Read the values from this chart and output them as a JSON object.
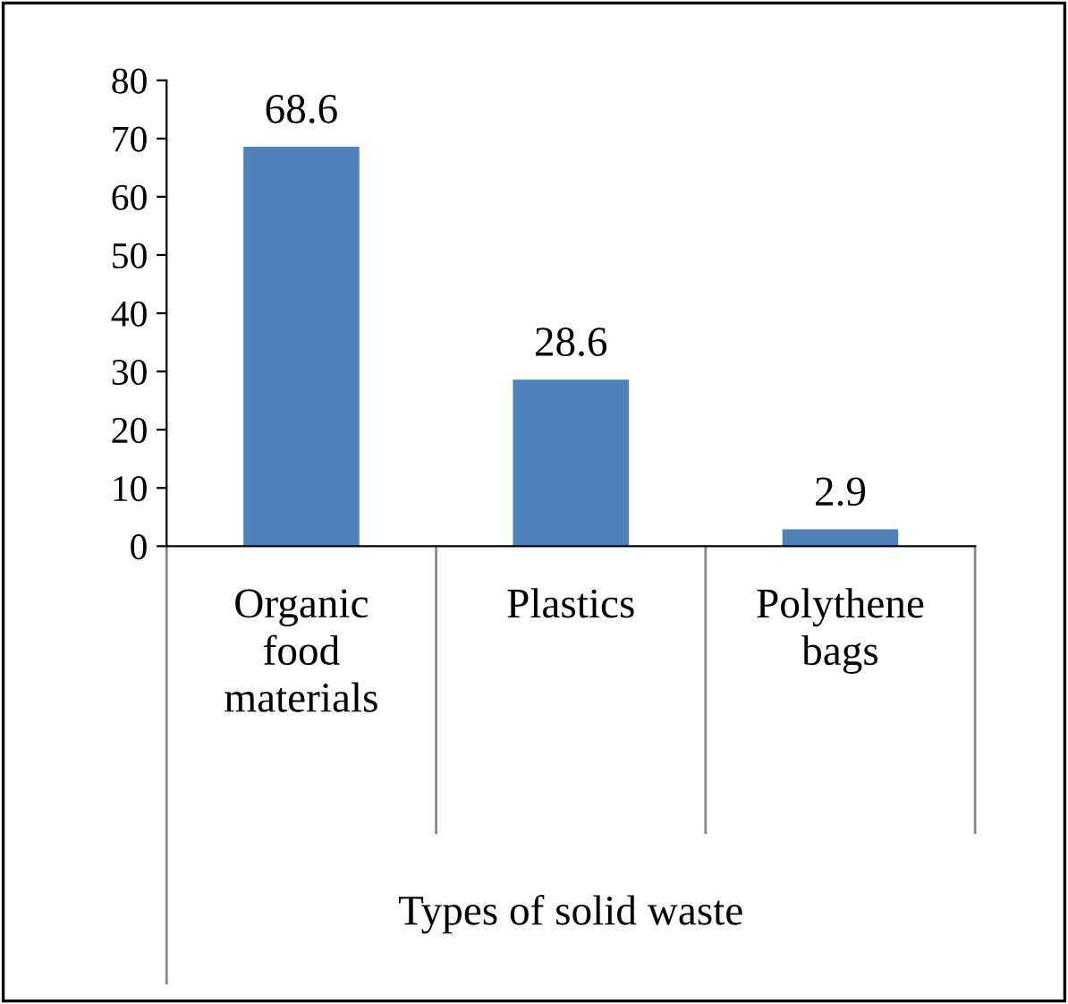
{
  "chart_data": {
    "type": "bar",
    "xlabel": "Types of solid waste",
    "categories": [
      "Organic\nfood\nmaterials",
      "Plastics",
      "Polythene\nbags"
    ],
    "values": [
      68.6,
      28.6,
      2.9
    ],
    "color": "#4f81bd",
    "ylim": [
      0,
      80
    ],
    "yticks": [
      0,
      10,
      20,
      30,
      40,
      50,
      60,
      70,
      80
    ],
    "data_labels": true,
    "grid": false,
    "legend": false
  }
}
